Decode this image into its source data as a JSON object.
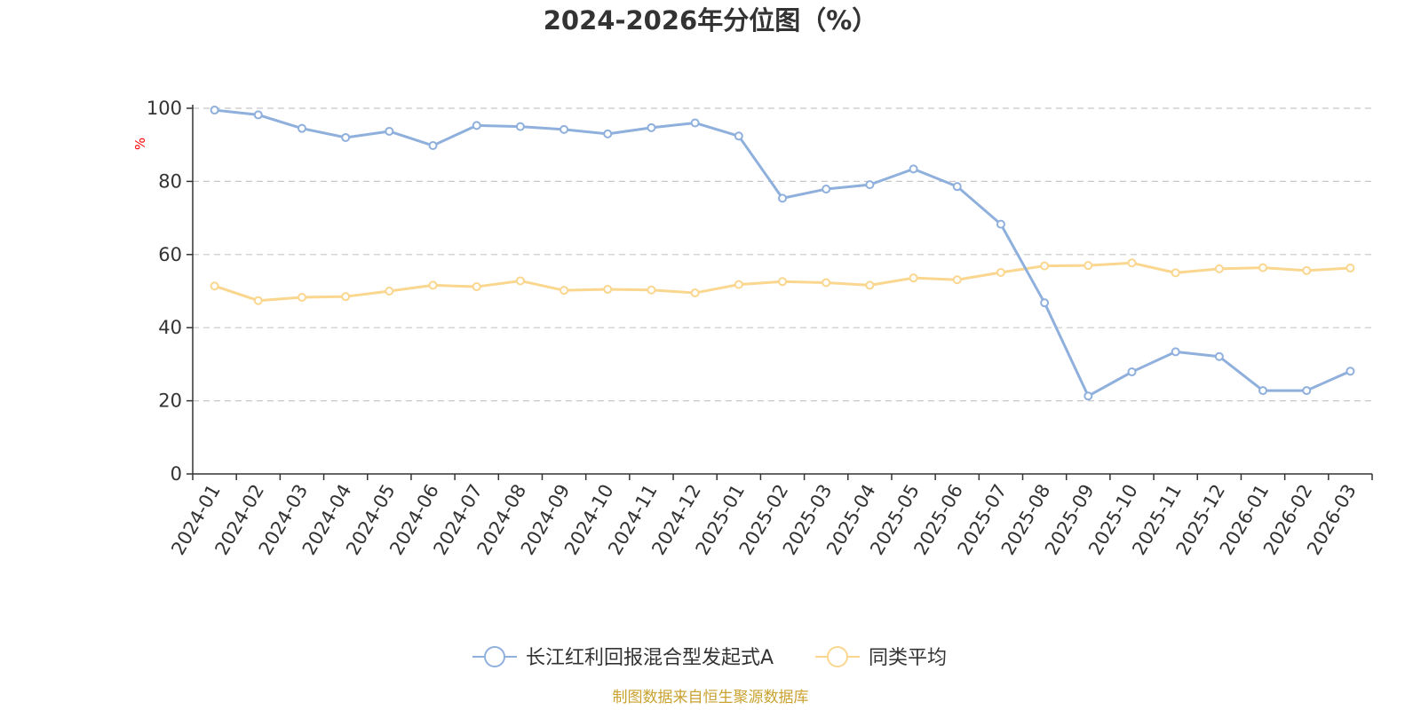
{
  "colors": {
    "series_1": "#8fb0dc",
    "series_2": "#fad68f",
    "axis": "#333333",
    "grid": "#c8c8c8",
    "ylabel": "#ff0000",
    "source": "#c9a230"
  },
  "chart_data": {
    "type": "line",
    "title": "2024-2026年分位图（%）",
    "ylabel": "%",
    "xlabel": "",
    "ylim": [
      0,
      100
    ],
    "yticks": [
      0,
      20,
      40,
      60,
      80,
      100
    ],
    "grid": true,
    "legend_position": "bottom-center",
    "categories": [
      "2024-01",
      "2024-02",
      "2024-03",
      "2024-04",
      "2024-05",
      "2024-06",
      "2024-07",
      "2024-08",
      "2024-09",
      "2024-10",
      "2024-11",
      "2024-12",
      "2025-01",
      "2025-02",
      "2025-03",
      "2025-04",
      "2025-05",
      "2025-06",
      "2025-07",
      "2025-08",
      "2025-09",
      "2025-10",
      "2025-11",
      "2025-12",
      "2026-01",
      "2026-02",
      "2026-03"
    ],
    "series": [
      {
        "name": "长江红利回报混合型发起式A",
        "values": [
          99.5,
          98.2,
          94.5,
          92.0,
          93.7,
          89.8,
          95.3,
          95.0,
          94.2,
          93.0,
          94.7,
          96.0,
          92.4,
          75.4,
          77.9,
          79.1,
          83.4,
          78.6,
          68.3,
          46.8,
          21.3,
          27.9,
          33.4,
          32.1,
          22.8,
          22.8,
          28.1
        ]
      },
      {
        "name": "同类平均",
        "values": [
          51.4,
          47.4,
          48.3,
          48.5,
          50.0,
          51.6,
          51.2,
          52.8,
          50.2,
          50.5,
          50.3,
          49.5,
          51.8,
          52.6,
          52.3,
          51.6,
          53.6,
          53.1,
          55.1,
          56.9,
          57.0,
          57.7,
          55.0,
          56.1,
          56.4,
          55.6,
          56.3
        ]
      }
    ]
  },
  "source": "制图数据来自恒生聚源数据库"
}
